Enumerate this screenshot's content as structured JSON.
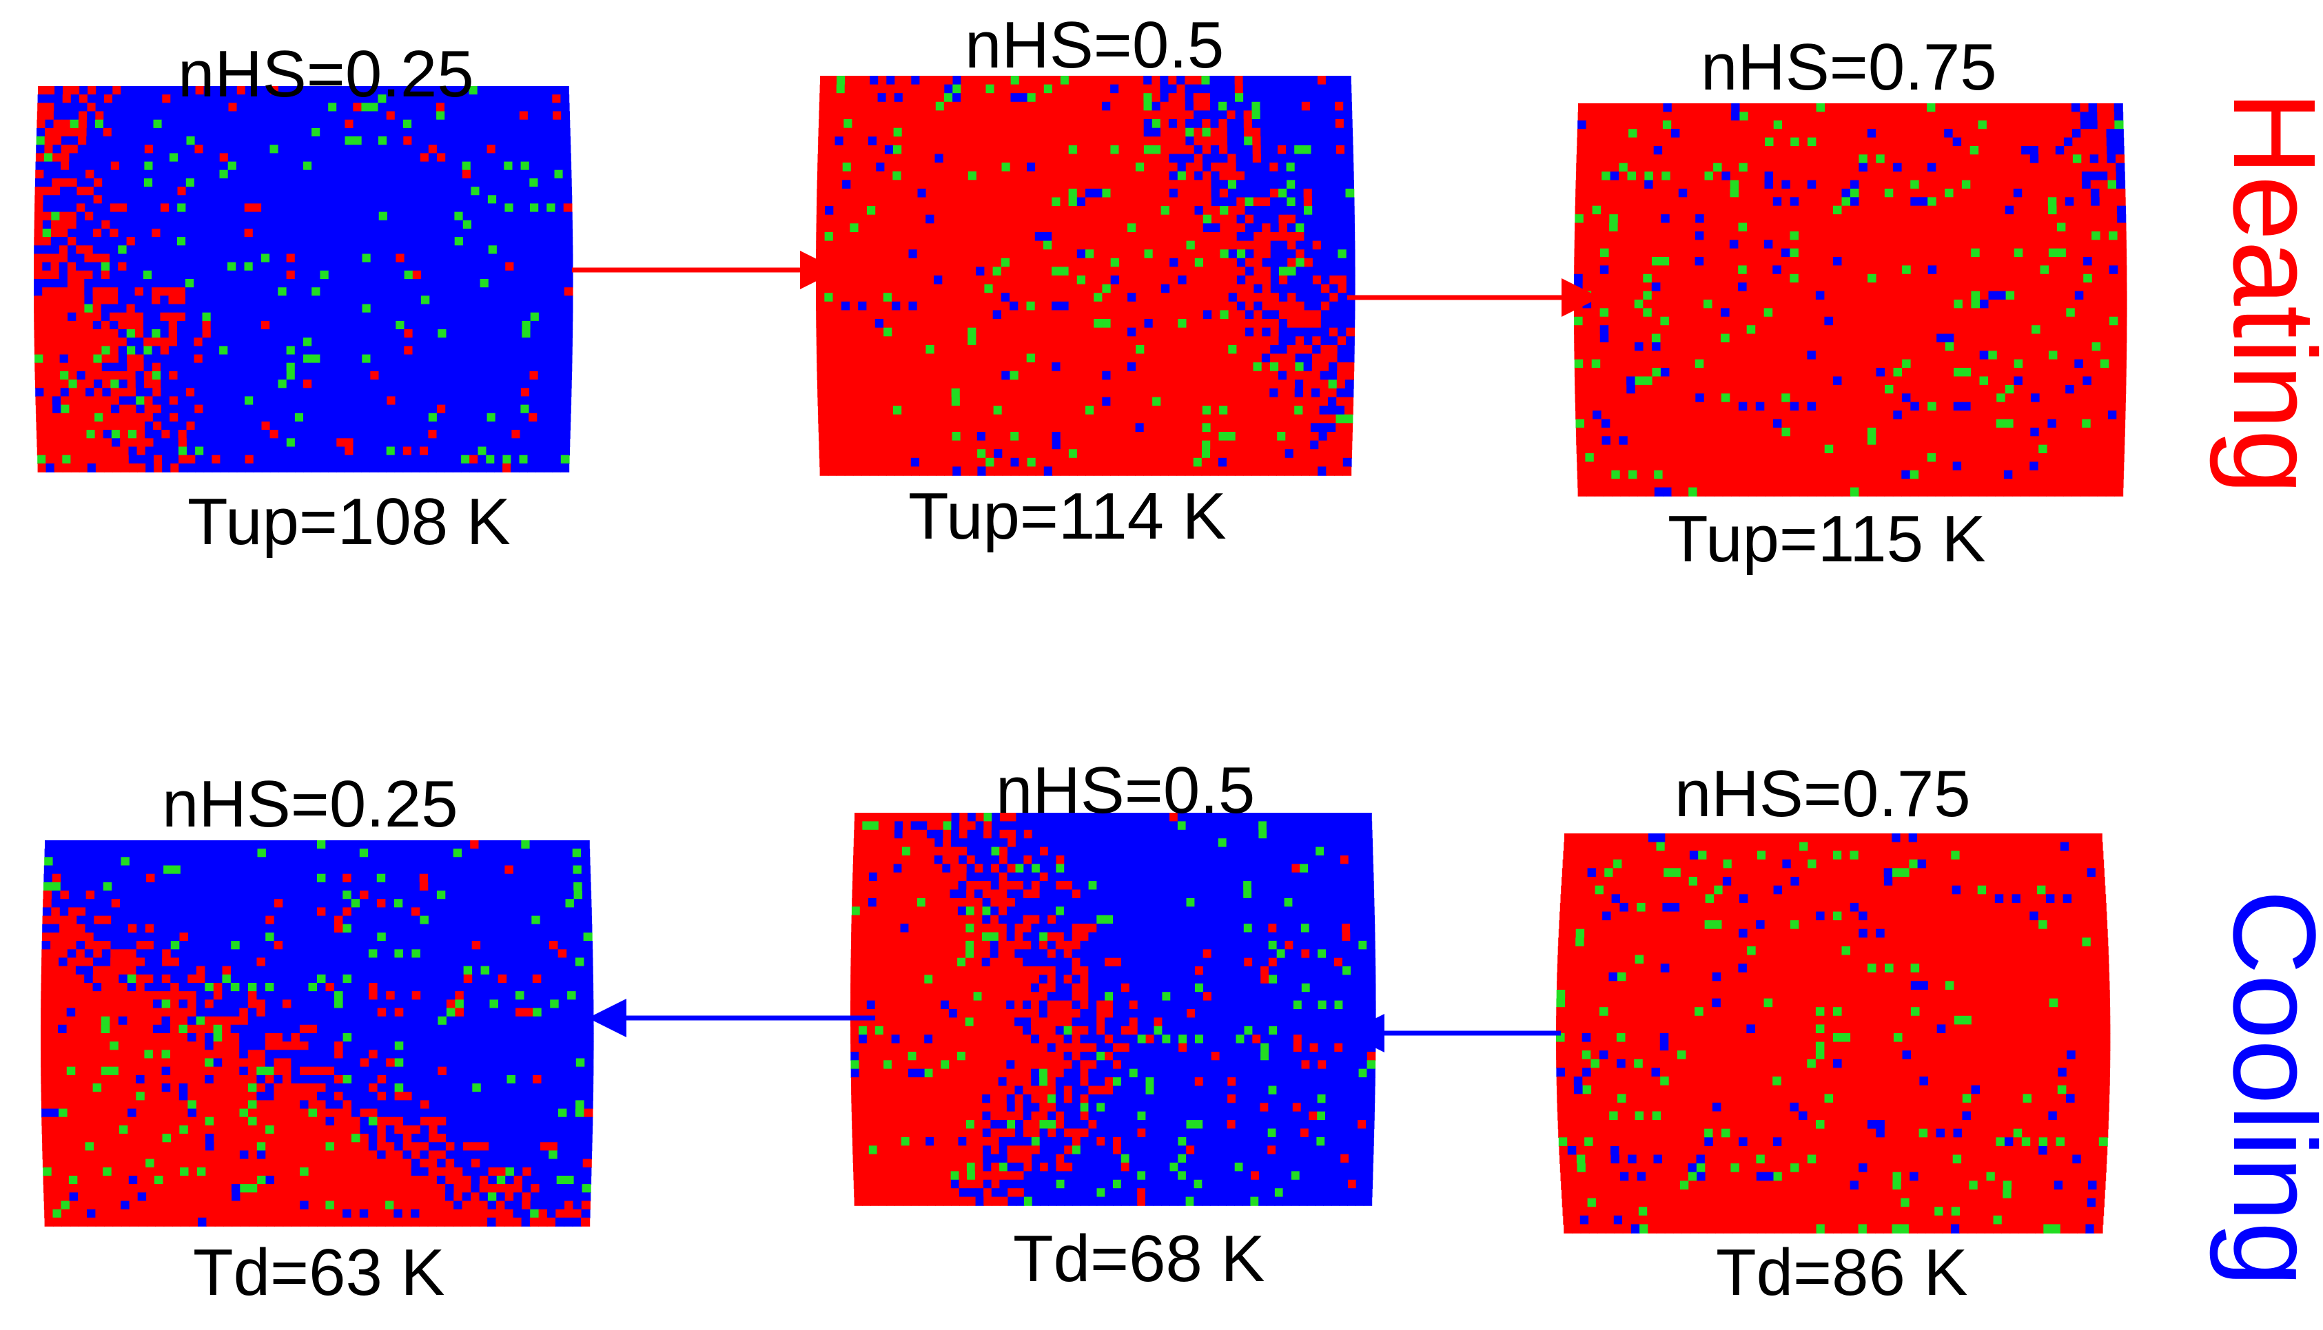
{
  "colors": {
    "hs": "#ff0000",
    "ls": "#0000ff",
    "defect": "#22dd22",
    "heating": "#ff0000",
    "cooling": "#0000ff"
  },
  "rows": [
    {
      "label": "Heating",
      "arrow_direction": "right",
      "panels": [
        {
          "n_label": "nHS=0.25",
          "t_label": "Tup=108 K",
          "fraction_hs": 0.25
        },
        {
          "n_label": "nHS=0.5",
          "t_label": "Tup=114 K",
          "fraction_hs": 0.5
        },
        {
          "n_label": "nHS=0.75",
          "t_label": "Tup=115 K",
          "fraction_hs": 0.75
        }
      ]
    },
    {
      "label": "Cooling",
      "arrow_direction": "left",
      "panels": [
        {
          "n_label": "nHS=0.25",
          "t_label": "Td=63 K",
          "fraction_hs": 0.25
        },
        {
          "n_label": "nHS=0.5",
          "t_label": "Td=68 K",
          "fraction_hs": 0.5
        },
        {
          "n_label": "nHS=0.75",
          "t_label": "Td=86 K",
          "fraction_hs": 0.75
        }
      ]
    }
  ]
}
